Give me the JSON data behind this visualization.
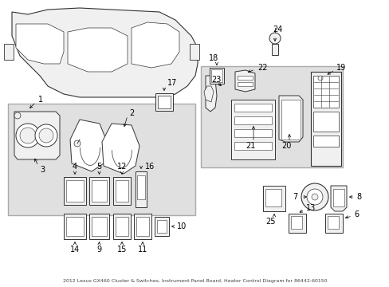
{
  "title": "2012 Lexus GX460 Cluster & Switches, Instrument Panel Board, Heater Control Diagram for 86442-60150",
  "bg_color": "#ffffff",
  "fig_width": 4.89,
  "fig_height": 3.6,
  "dpi": 100,
  "font_size": 7
}
